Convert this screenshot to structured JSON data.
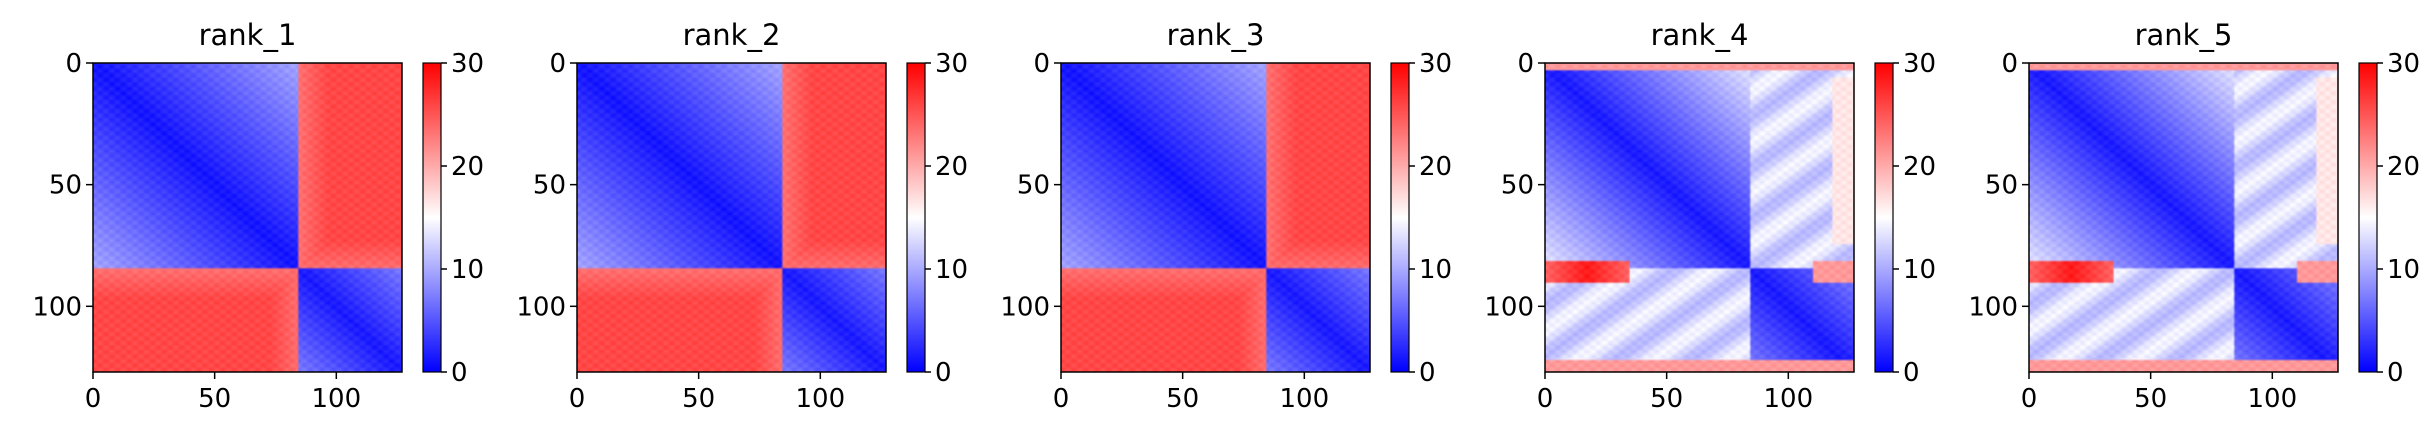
{
  "colormap": {
    "name": "bwr",
    "low": "#0000ff",
    "mid": "#ffffff",
    "high": "#ff0000"
  },
  "chart_data": [
    {
      "type": "heatmap",
      "title": "rank_1",
      "xticks": [
        0,
        50,
        100
      ],
      "yticks": [
        0,
        50,
        100
      ],
      "xlim": [
        0,
        127
      ],
      "ylim": [
        127,
        0
      ],
      "colorbar": {
        "ticks": [
          0,
          10,
          20,
          30
        ],
        "range": [
          0,
          30
        ]
      },
      "pattern": {
        "block_boundary": 85,
        "diag_crossover": 85
      }
    },
    {
      "type": "heatmap",
      "title": "rank_2",
      "xticks": [
        0,
        50,
        100
      ],
      "yticks": [
        0,
        50,
        100
      ],
      "xlim": [
        0,
        127
      ],
      "ylim": [
        127,
        0
      ],
      "colorbar": {
        "ticks": [
          0,
          10,
          20,
          30
        ],
        "range": [
          0,
          30
        ]
      },
      "pattern": {
        "block_boundary": 85,
        "diag_crossover": 85
      }
    },
    {
      "type": "heatmap",
      "title": "rank_3",
      "xticks": [
        0,
        50,
        100
      ],
      "yticks": [
        0,
        50,
        100
      ],
      "xlim": [
        0,
        127
      ],
      "ylim": [
        127,
        0
      ],
      "colorbar": {
        "ticks": [
          0,
          10,
          20,
          30
        ],
        "range": [
          0,
          30
        ]
      },
      "pattern": {
        "block_boundary": 85,
        "diag_crossover": 85
      }
    },
    {
      "type": "heatmap",
      "title": "rank_4",
      "xticks": [
        0,
        50,
        100
      ],
      "yticks": [
        0,
        50,
        100
      ],
      "xlim": [
        0,
        127
      ],
      "ylim": [
        127,
        0
      ],
      "colorbar": {
        "ticks": [
          0,
          10,
          20,
          30
        ],
        "range": [
          0,
          30
        ]
      },
      "pattern": {
        "block_boundary": 85,
        "diag_crossover": 85
      }
    },
    {
      "type": "heatmap",
      "title": "rank_5",
      "xticks": [
        0,
        50,
        100
      ],
      "yticks": [
        0,
        50,
        100
      ],
      "xlim": [
        0,
        127
      ],
      "ylim": [
        127,
        0
      ],
      "colorbar": {
        "ticks": [
          0,
          10,
          20,
          30
        ],
        "range": [
          0,
          30
        ]
      },
      "pattern": {
        "block_boundary": 85,
        "diag_crossover": 85
      }
    }
  ]
}
